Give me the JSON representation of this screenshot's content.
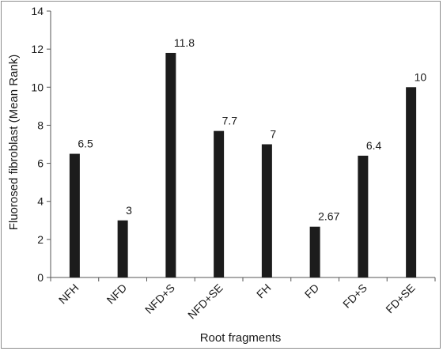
{
  "chart_data": {
    "type": "bar",
    "title": "",
    "xlabel": "Root fragments",
    "ylabel": "Fluorosed fibroblast (Mean Rank)",
    "categories": [
      "NFH",
      "NFD",
      "NFD+S",
      "NFD+SE",
      "FH",
      "FD",
      "FD+S",
      "FD+SE"
    ],
    "values": [
      6.5,
      3,
      11.8,
      7.7,
      7,
      2.67,
      6.4,
      10
    ],
    "data_labels": [
      "6.5",
      "3",
      "11.8",
      "7.7",
      "7",
      "2.67",
      "6.4",
      "10"
    ],
    "ylim": [
      0,
      14
    ],
    "yticks": [
      0,
      2,
      4,
      6,
      8,
      10,
      12,
      14
    ],
    "bar_color": "#1c1c1c",
    "grid": false,
    "legend": "none"
  }
}
